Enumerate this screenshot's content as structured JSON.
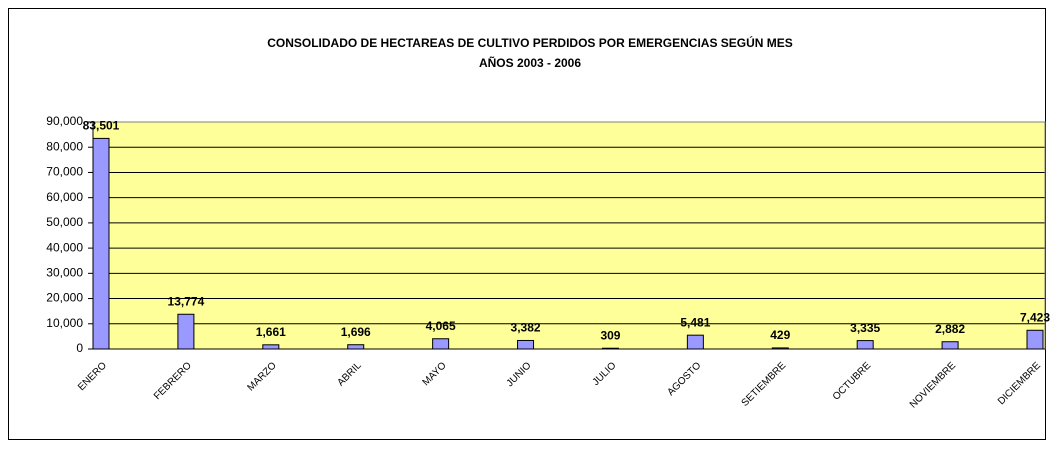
{
  "chart_data": {
    "type": "bar",
    "title": "CONSOLIDADO DE HECTAREAS DE CULTIVO PERDIDOS POR EMERGENCIAS SEGÚN MES",
    "subtitle": "AÑOS 2003 - 2006",
    "categories": [
      "ENERO",
      "FEBRERO",
      "MARZO",
      "ABRIL",
      "MAYO",
      "JUNIO",
      "JULIO",
      "AGOSTO",
      "SETIEMBRE",
      "OCTUBRE",
      "NOVIEMBRE",
      "DICIEMBRE"
    ],
    "values": [
      83501,
      13774,
      1661,
      1696,
      4065,
      3382,
      309,
      5481,
      429,
      3335,
      2882,
      7423
    ],
    "value_labels": [
      "83,501",
      "13,774",
      "1,661",
      "1,696",
      "4,065",
      "3,382",
      "309",
      "5,481",
      "429",
      "3,335",
      "2,882",
      "7,423"
    ],
    "color": "#9999ff",
    "ylim": [
      0,
      90000
    ],
    "yticks": [
      0,
      {
        "value": 10000,
        "label": "10,000"
      },
      {
        "value": 20000,
        "label": "20,000"
      },
      {
        "value": 30000,
        "label": "30,000"
      },
      {
        "value": 40000,
        "label": "40,000"
      },
      {
        "value": 50000,
        "label": "50,000"
      },
      {
        "value": 60000,
        "label": "60,000"
      },
      {
        "value": 70000,
        "label": "70,000"
      },
      {
        "value": 80000,
        "label": "80,000"
      },
      {
        "value": 90000,
        "label": "90,000"
      }
    ],
    "grid": true
  }
}
